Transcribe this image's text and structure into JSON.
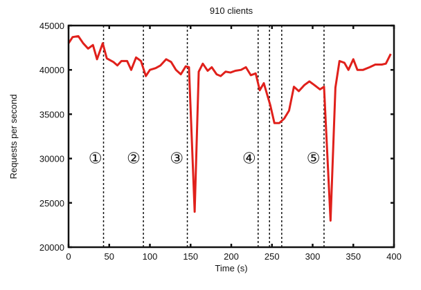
{
  "chart_data": {
    "type": "line",
    "title": "910 clients",
    "xlabel": "Time (s)",
    "ylabel": "Requests per second",
    "xlim": [
      0,
      400
    ],
    "ylim": [
      20000,
      45000
    ],
    "xticks": [
      0,
      50,
      100,
      150,
      200,
      250,
      300,
      350,
      400
    ],
    "yticks": [
      20000,
      25000,
      30000,
      35000,
      40000,
      45000
    ],
    "grid": false,
    "line_color": "#e0201b",
    "series": [
      {
        "name": "requests",
        "x": [
          0,
          5,
          12,
          18,
          24,
          30,
          35,
          42,
          47,
          55,
          60,
          65,
          72,
          77,
          83,
          89,
          95,
          100,
          107,
          113,
          120,
          126,
          132,
          138,
          144,
          148,
          155,
          160,
          165,
          171,
          176,
          182,
          187,
          193,
          199,
          205,
          212,
          218,
          224,
          230,
          235,
          240,
          248,
          253,
          259,
          265,
          271,
          277,
          283,
          290,
          296,
          302,
          309,
          314,
          322,
          328,
          333,
          339,
          344,
          350,
          355,
          362,
          370,
          377,
          385,
          390,
          396
        ],
        "y": [
          43000,
          43700,
          43800,
          43000,
          42400,
          42800,
          41200,
          43000,
          41300,
          40900,
          40500,
          41000,
          41000,
          40000,
          41400,
          41000,
          39300,
          40000,
          40200,
          40500,
          41200,
          40900,
          40000,
          39500,
          40400,
          40300,
          24000,
          39800,
          40700,
          39900,
          40300,
          39500,
          39300,
          39800,
          39700,
          39900,
          40000,
          40300,
          39400,
          39600,
          37700,
          38500,
          36000,
          34000,
          34000,
          34500,
          35400,
          38100,
          37600,
          38300,
          38700,
          38300,
          37800,
          38100,
          23000,
          38000,
          41000,
          40800,
          40000,
          41200,
          40000,
          40000,
          40300,
          40600,
          40600,
          40700,
          41800
        ]
      }
    ],
    "vlines": [
      43,
      92,
      146,
      233,
      247,
      262,
      314
    ],
    "annotations": [
      {
        "text": "①",
        "x": 33,
        "y": 30000
      },
      {
        "text": "②",
        "x": 80,
        "y": 30000
      },
      {
        "text": "③",
        "x": 133,
        "y": 30000
      },
      {
        "text": "④",
        "x": 222,
        "y": 30000
      },
      {
        "text": "⑤",
        "x": 301,
        "y": 30000
      }
    ]
  }
}
